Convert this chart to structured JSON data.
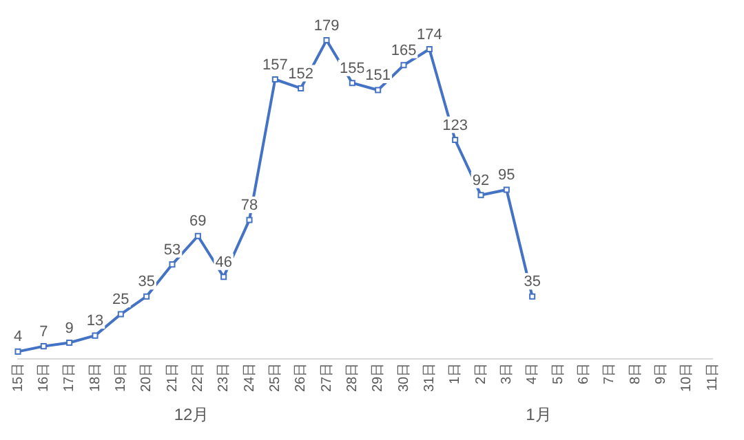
{
  "chart_data": {
    "type": "line",
    "categories": [
      "15日",
      "16日",
      "17日",
      "18日",
      "19日",
      "20日",
      "21日",
      "22日",
      "23日",
      "24日",
      "25日",
      "26日",
      "27日",
      "28日",
      "29日",
      "30日",
      "31日",
      "1日",
      "2日",
      "3日",
      "4日",
      "5日",
      "6日",
      "7日",
      "8日",
      "9日",
      "10日",
      "11日"
    ],
    "series": [
      {
        "color": "#4472c4",
        "values": [
          4,
          7,
          9,
          13,
          25,
          35,
          53,
          69,
          46,
          78,
          157,
          152,
          179,
          155,
          151,
          165,
          174,
          123,
          92,
          95,
          35,
          null,
          null,
          null,
          null,
          null,
          null,
          null
        ]
      }
    ],
    "annotations": [
      "12月",
      "1月"
    ],
    "data_labels": true,
    "marker": "square",
    "grid": false,
    "legend": false
  }
}
